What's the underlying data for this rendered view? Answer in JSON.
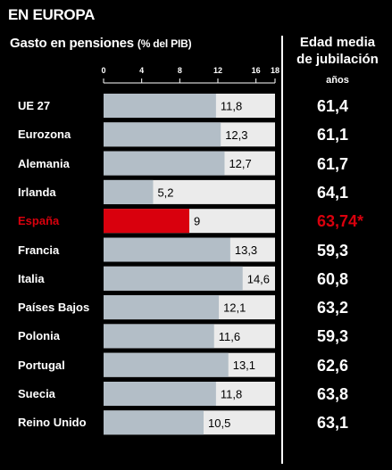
{
  "header": {
    "title": "EN EUROPA",
    "subtitle": "Gasto en pensiones",
    "subtitle_unit": "(% del PIB)",
    "right_heading_line1": "Edad media",
    "right_heading_line2": "de jubilación",
    "right_subheading": "años"
  },
  "colors": {
    "background": "#000000",
    "bar": "#b3bec7",
    "bar_highlight": "#d9000d",
    "track": "#ebebeb",
    "highlight_text": "#d9000d"
  },
  "chart_data": {
    "type": "bar",
    "orientation": "horizontal",
    "xlim": [
      0,
      18
    ],
    "ticks": [
      0,
      4,
      8,
      12,
      16,
      18
    ],
    "categories": [
      "UE 27",
      "Eurozona",
      "Alemania",
      "Irlanda",
      "España",
      "Francia",
      "Italia",
      "Países Bajos",
      "Polonia",
      "Portugal",
      "Suecia",
      "Reino Unido"
    ],
    "values": [
      11.8,
      12.3,
      12.7,
      5.2,
      9,
      13.3,
      14.6,
      12.1,
      11.6,
      13.1,
      11.8,
      10.5
    ],
    "value_labels": [
      "11,8",
      "12,3",
      "12,7",
      "5,2",
      "9",
      "13,3",
      "14,6",
      "12,1",
      "11,6",
      "13,1",
      "11,8",
      "10,5"
    ],
    "highlight_index": 4,
    "retirement_age": [
      "61,4",
      "61,1",
      "61,7",
      "64,1",
      "63,74*",
      "59,3",
      "60,8",
      "63,2",
      "59,3",
      "62,6",
      "63,8",
      "63,1"
    ]
  }
}
